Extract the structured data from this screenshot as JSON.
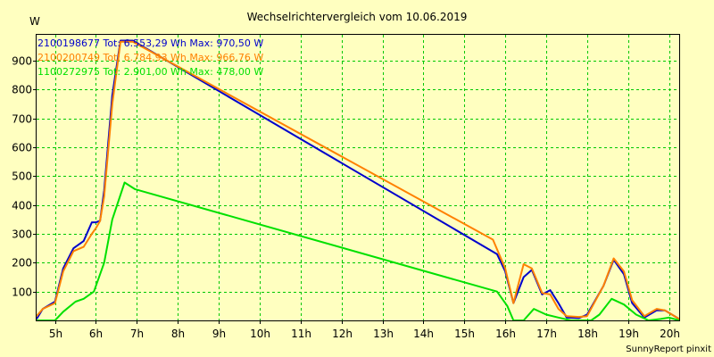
{
  "chart_data": {
    "type": "line",
    "title": "Wechselrichtervergleich vom 10.06.2019",
    "ylabel": "W",
    "xlabel": "",
    "footer": "SunnyReport pinxit",
    "ylim": [
      0,
      990
    ],
    "xlim": [
      4.55,
      20.25
    ],
    "yticks": [
      100,
      200,
      300,
      400,
      500,
      600,
      700,
      800,
      900
    ],
    "xticks": [
      {
        "value": 5,
        "label": "5h"
      },
      {
        "value": 6,
        "label": "6h"
      },
      {
        "value": 7,
        "label": "7h"
      },
      {
        "value": 8,
        "label": "8h"
      },
      {
        "value": 9,
        "label": "9h"
      },
      {
        "value": 10,
        "label": "10h"
      },
      {
        "value": 11,
        "label": "11h"
      },
      {
        "value": 12,
        "label": "12h"
      },
      {
        "value": 13,
        "label": "13h"
      },
      {
        "value": 14,
        "label": "14h"
      },
      {
        "value": 15,
        "label": "15h"
      },
      {
        "value": 16,
        "label": "16h"
      },
      {
        "value": 17,
        "label": "17h"
      },
      {
        "value": 18,
        "label": "18h"
      },
      {
        "value": 19,
        "label": "19h"
      },
      {
        "value": 20,
        "label": "20h"
      }
    ],
    "grid": true,
    "legend_position": "top-left",
    "series": [
      {
        "name": "2100198677",
        "legend": "2100198677 Tot: 6.553,29 Wh Max: 970,50 W",
        "color": "#0000CC",
        "points": [
          [
            4.55,
            5
          ],
          [
            4.7,
            40
          ],
          [
            5.0,
            65
          ],
          [
            5.2,
            180
          ],
          [
            5.45,
            250
          ],
          [
            5.7,
            275
          ],
          [
            5.9,
            340
          ],
          [
            6.0,
            340
          ],
          [
            6.1,
            345
          ],
          [
            6.2,
            450
          ],
          [
            6.4,
            780
          ],
          [
            6.6,
            970
          ],
          [
            6.9,
            970
          ],
          [
            15.8,
            230
          ],
          [
            16.0,
            170
          ],
          [
            16.2,
            60
          ],
          [
            16.45,
            150
          ],
          [
            16.65,
            175
          ],
          [
            16.9,
            90
          ],
          [
            17.1,
            105
          ],
          [
            17.3,
            60
          ],
          [
            17.5,
            10
          ],
          [
            17.8,
            8
          ],
          [
            18.0,
            20
          ],
          [
            18.4,
            120
          ],
          [
            18.65,
            210
          ],
          [
            18.9,
            160
          ],
          [
            19.1,
            60
          ],
          [
            19.4,
            10
          ],
          [
            19.7,
            35
          ],
          [
            19.9,
            35
          ],
          [
            20.25,
            5
          ]
        ]
      },
      {
        "name": "2100200749",
        "legend": "2100200749 Tot: 6.784,93 Wh Max: 966,76 W",
        "color": "#FF8000",
        "points": [
          [
            4.55,
            15
          ],
          [
            4.7,
            40
          ],
          [
            5.0,
            60
          ],
          [
            5.2,
            170
          ],
          [
            5.45,
            240
          ],
          [
            5.7,
            255
          ],
          [
            5.9,
            300
          ],
          [
            6.0,
            320
          ],
          [
            6.1,
            345
          ],
          [
            6.2,
            430
          ],
          [
            6.4,
            750
          ],
          [
            6.6,
            966
          ],
          [
            6.9,
            966
          ],
          [
            15.7,
            280
          ],
          [
            16.0,
            180
          ],
          [
            16.2,
            60
          ],
          [
            16.45,
            195
          ],
          [
            16.65,
            180
          ],
          [
            16.9,
            95
          ],
          [
            17.1,
            90
          ],
          [
            17.3,
            40
          ],
          [
            17.5,
            15
          ],
          [
            17.8,
            12
          ],
          [
            18.0,
            15
          ],
          [
            18.4,
            120
          ],
          [
            18.65,
            215
          ],
          [
            18.9,
            170
          ],
          [
            19.1,
            70
          ],
          [
            19.4,
            15
          ],
          [
            19.7,
            40
          ],
          [
            19.9,
            35
          ],
          [
            20.25,
            5
          ]
        ]
      },
      {
        "name": "1100272975",
        "legend": "1100272975 Tot: 2.901,00 Wh Max: 478,00 W",
        "color": "#00E000",
        "points": [
          [
            4.55,
            0
          ],
          [
            5.0,
            0
          ],
          [
            5.2,
            30
          ],
          [
            5.5,
            65
          ],
          [
            5.7,
            75
          ],
          [
            5.95,
            100
          ],
          [
            6.2,
            200
          ],
          [
            6.4,
            350
          ],
          [
            6.7,
            478
          ],
          [
            6.95,
            455
          ],
          [
            15.8,
            100
          ],
          [
            16.05,
            50
          ],
          [
            16.2,
            0
          ],
          [
            16.45,
            0
          ],
          [
            16.7,
            40
          ],
          [
            17.0,
            20
          ],
          [
            17.3,
            10
          ],
          [
            17.6,
            0
          ],
          [
            18.1,
            0
          ],
          [
            18.3,
            20
          ],
          [
            18.6,
            75
          ],
          [
            18.9,
            55
          ],
          [
            19.2,
            20
          ],
          [
            19.5,
            0
          ],
          [
            19.8,
            5
          ],
          [
            20.0,
            10
          ],
          [
            20.25,
            0
          ]
        ]
      }
    ]
  }
}
